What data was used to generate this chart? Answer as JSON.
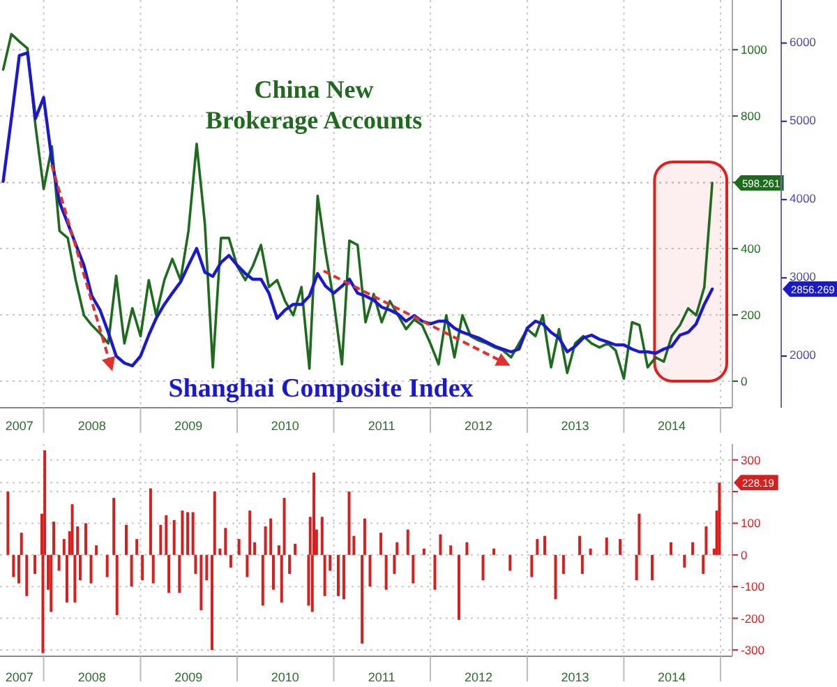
{
  "chart_data": [
    {
      "type": "line",
      "x": [
        "2007-08",
        "2007-09",
        "2007-10",
        "2007-11",
        "2007-12",
        "2008-01",
        "2008-02",
        "2008-03",
        "2008-04",
        "2008-05",
        "2008-06",
        "2008-07",
        "2008-08",
        "2008-09",
        "2008-10",
        "2008-11",
        "2008-12",
        "2009-01",
        "2009-02",
        "2009-03",
        "2009-04",
        "2009-05",
        "2009-06",
        "2009-07",
        "2009-08",
        "2009-09",
        "2009-10",
        "2009-11",
        "2009-12",
        "2010-01",
        "2010-02",
        "2010-03",
        "2010-04",
        "2010-05",
        "2010-06",
        "2010-07",
        "2010-08",
        "2010-09",
        "2010-10",
        "2010-11",
        "2010-12",
        "2011-01",
        "2011-02",
        "2011-03",
        "2011-04",
        "2011-05",
        "2011-06",
        "2011-07",
        "2011-08",
        "2011-09",
        "2011-10",
        "2011-11",
        "2011-12",
        "2012-01",
        "2012-02",
        "2012-03",
        "2012-04",
        "2012-05",
        "2012-06",
        "2012-07",
        "2012-08",
        "2012-09",
        "2012-10",
        "2012-11",
        "2012-12",
        "2013-01",
        "2013-02",
        "2013-03",
        "2013-04",
        "2013-05",
        "2013-06",
        "2013-07",
        "2013-08",
        "2013-09",
        "2013-10",
        "2013-11",
        "2013-12",
        "2014-01",
        "2014-02",
        "2014-03",
        "2014-04",
        "2014-05",
        "2014-06",
        "2014-07",
        "2014-08",
        "2014-09",
        "2014-10",
        "2014-11",
        "2014-12"
      ],
      "series": [
        {
          "name": "China New Brokerage Accounts",
          "color": "#1e6b1e",
          "values": [
            940,
            1047,
            1025,
            1004,
            771,
            580,
            708,
            453,
            432,
            305,
            199,
            169,
            144,
            114,
            318,
            114,
            220,
            136,
            305,
            199,
            305,
            369,
            305,
            453,
            716,
            475,
            42,
            432,
            432,
            347,
            305,
            347,
            411,
            284,
            305,
            242,
            199,
            284,
            38,
            559,
            390,
            242,
            51,
            424,
            411,
            178,
            263,
            178,
            242,
            199,
            157,
            186,
            169,
            114,
            51,
            199,
            72,
            199,
            136,
            123,
            114,
            102,
            93,
            72,
            114,
            157,
            136,
            199,
            42,
            157,
            25,
            114,
            136,
            114,
            102,
            114,
            93,
            8,
            178,
            169,
            42,
            72,
            59,
            136,
            169,
            220,
            199,
            284,
            598.261
          ]
        },
        {
          "name": "Shanghai Composite Index",
          "color": "#1a1acc",
          "axis": "y2",
          "values": [
            4232,
            5036,
            5839,
            5875,
            5036,
            5304,
            4500,
            3964,
            3696,
            3429,
            3161,
            2768,
            2589,
            2304,
            2000,
            1911,
            1875,
            2000,
            2268,
            2482,
            2661,
            2804,
            2946,
            3161,
            3375,
            3071,
            3018,
            3196,
            3286,
            3161,
            3054,
            2982,
            2982,
            2804,
            2482,
            2589,
            2661,
            2661,
            2768,
            3054,
            2893,
            2804,
            2893,
            2982,
            2804,
            2768,
            2714,
            2625,
            2589,
            2536,
            2446,
            2518,
            2446,
            2411,
            2446,
            2446,
            2357,
            2304,
            2268,
            2232,
            2179,
            2125,
            2089,
            2054,
            2089,
            2357,
            2446,
            2411,
            2304,
            2232,
            2054,
            2125,
            2232,
            2268,
            2214,
            2179,
            2143,
            2143,
            2089,
            2054,
            2054,
            2036,
            2089,
            2125,
            2268,
            2304,
            2411,
            2661,
            2856.269
          ]
        }
      ],
      "xlim": [
        "2007-07-20",
        "2015-02-15"
      ],
      "xticks": [
        {
          "value": "2007-10-01",
          "label": "2007"
        },
        {
          "value": "2008-01-01",
          "label": null
        },
        {
          "value": "2008-07-01",
          "label": "2008"
        },
        {
          "value": "2009-01-01",
          "label": null
        },
        {
          "value": "2009-07-01",
          "label": "2009"
        },
        {
          "value": "2010-01-01",
          "label": null
        },
        {
          "value": "2010-07-01",
          "label": "2010"
        },
        {
          "value": "2011-01-01",
          "label": null
        },
        {
          "value": "2011-07-01",
          "label": "2011"
        },
        {
          "value": "2012-01-01",
          "label": null
        },
        {
          "value": "2012-07-01",
          "label": "2012"
        },
        {
          "value": "2013-01-01",
          "label": null
        },
        {
          "value": "2013-07-01",
          "label": "2013"
        },
        {
          "value": "2014-01-01",
          "label": null
        },
        {
          "value": "2014-07-01",
          "label": "2014"
        },
        {
          "value": "2015-01-01",
          "label": null
        }
      ],
      "ylim": [
        -80,
        1150
      ],
      "yticks": [
        0,
        200,
        400,
        {
          "value": 600,
          "label": null
        },
        800,
        1000,
        {
          "value": 598.261,
          "label": "598.261"
        }
      ],
      "bands": [
        {
          "axis": "x",
          "from": "2014-04-27",
          "to": "2015-01-25",
          "color": "#e02020"
        }
      ],
      "y2lim": [
        1340,
        6550
      ],
      "y2ticks": [
        2000,
        3000,
        4000,
        5000,
        6000,
        {
          "value": 2856.269,
          "label": "2856.269"
        }
      ],
      "grid": true
    },
    {
      "type": "bar",
      "color": "#d62020",
      "x": [
        "2007-08-19",
        "2007-09-09",
        "2007-09-29",
        "2007-10-09",
        "2007-10-29",
        "2007-11-29",
        "2007-12-25",
        "2007-12-29",
        "2008-01-05",
        "2008-01-18",
        "2008-01-29",
        "2008-02-08",
        "2008-02-28",
        "2008-03-18",
        "2008-03-29",
        "2008-04-08",
        "2008-04-18",
        "2008-04-28",
        "2008-05-08",
        "2008-05-18",
        "2008-06-08",
        "2008-06-28",
        "2008-07-18",
        "2008-08-28",
        "2008-09-22",
        "2008-10-04",
        "2008-11-08",
        "2008-11-28",
        "2008-12-18",
        "2009-01-08",
        "2009-02-08",
        "2009-02-18",
        "2009-03-18",
        "2009-04-08",
        "2009-04-18",
        "2009-05-08",
        "2009-05-28",
        "2009-06-08",
        "2009-06-28",
        "2009-07-18",
        "2009-07-28",
        "2009-08-18",
        "2009-09-08",
        "2009-09-28",
        "2009-10-08",
        "2009-10-28",
        "2009-11-18",
        "2009-12-08",
        "2010-01-08",
        "2010-02-08",
        "2010-02-18",
        "2010-03-08",
        "2010-04-08",
        "2010-04-18",
        "2010-05-08",
        "2010-05-18",
        "2010-06-08",
        "2010-06-18",
        "2010-06-28",
        "2010-07-18",
        "2010-08-08",
        "2010-09-28",
        "2010-10-04",
        "2010-10-12",
        "2010-10-18",
        "2010-10-28",
        "2010-11-18",
        "2010-11-28",
        "2010-12-18",
        "2011-01-18",
        "2011-02-08",
        "2011-02-28",
        "2011-03-18",
        "2011-04-18",
        "2011-04-28",
        "2011-05-18",
        "2011-06-28",
        "2011-07-18",
        "2011-08-18",
        "2011-08-28",
        "2011-10-08",
        "2011-10-28",
        "2011-12-08",
        "2012-01-18",
        "2012-02-08",
        "2012-03-18",
        "2012-04-18",
        "2012-05-18",
        "2012-07-18",
        "2012-08-28",
        "2012-10-28",
        "2013-01-18",
        "2013-02-08",
        "2013-03-08",
        "2013-04-18",
        "2013-05-18",
        "2013-07-18",
        "2013-07-28",
        "2013-08-28",
        "2013-10-28",
        "2013-12-18",
        "2014-02-18",
        "2014-02-28",
        "2014-04-18",
        "2014-06-28",
        "2014-08-18",
        "2014-09-18",
        "2014-10-28",
        "2014-11-08",
        "2014-12-08",
        "2014-12-18",
        "2014-12-28"
      ],
      "values": [
        200,
        -70,
        -90,
        70,
        -130,
        -60,
        130,
        -310,
        330,
        -110,
        -180,
        105,
        -50,
        50,
        -150,
        75,
        160,
        -150,
        90,
        -80,
        100,
        -90,
        30,
        -70,
        180,
        -190,
        95,
        -100,
        50,
        -80,
        210,
        -90,
        95,
        125,
        -120,
        110,
        -120,
        140,
        135,
        135,
        -60,
        -175,
        -80,
        -300,
        200,
        20,
        85,
        -40,
        50,
        -70,
        140,
        40,
        -160,
        90,
        115,
        -110,
        30,
        -150,
        180,
        -60,
        35,
        -160,
        120,
        -180,
        260,
        80,
        120,
        -130,
        -50,
        -130,
        -140,
        200,
        60,
        -280,
        115,
        -100,
        70,
        -110,
        -60,
        40,
        80,
        -90,
        20,
        -110,
        65,
        30,
        -205,
        40,
        -80,
        20,
        -50,
        -70,
        50,
        60,
        -140,
        -60,
        60,
        -60,
        20,
        55,
        50,
        -80,
        130,
        -80,
        40,
        -40,
        40,
        -60,
        90,
        20,
        140,
        228.19
      ],
      "xlim": [
        "2007-07-20",
        "2015-02-15"
      ],
      "xticks": [
        {
          "value": "2007-10-01",
          "label": "2007"
        },
        {
          "value": "2008-01-01",
          "label": null
        },
        {
          "value": "2008-07-01",
          "label": "2008"
        },
        {
          "value": "2009-01-01",
          "label": null
        },
        {
          "value": "2009-07-01",
          "label": "2009"
        },
        {
          "value": "2010-01-01",
          "label": null
        },
        {
          "value": "2010-07-01",
          "label": "2010"
        },
        {
          "value": "2011-01-01",
          "label": null
        },
        {
          "value": "2011-07-01",
          "label": "2011"
        },
        {
          "value": "2012-01-01",
          "label": null
        },
        {
          "value": "2012-07-01",
          "label": "2012"
        },
        {
          "value": "2013-01-01",
          "label": null
        },
        {
          "value": "2013-07-01",
          "label": "2013"
        },
        {
          "value": "2014-01-01",
          "label": null
        },
        {
          "value": "2014-07-01",
          "label": "2014"
        },
        {
          "value": "2015-01-01",
          "label": null
        }
      ],
      "ylim": [
        -320,
        350
      ],
      "yticks": [
        -300,
        -200,
        -100,
        0,
        100,
        {
          "value": 200,
          "label": null
        },
        300,
        {
          "value": 228.19,
          "label": "228.19"
        }
      ],
      "grid": true
    }
  ]
}
